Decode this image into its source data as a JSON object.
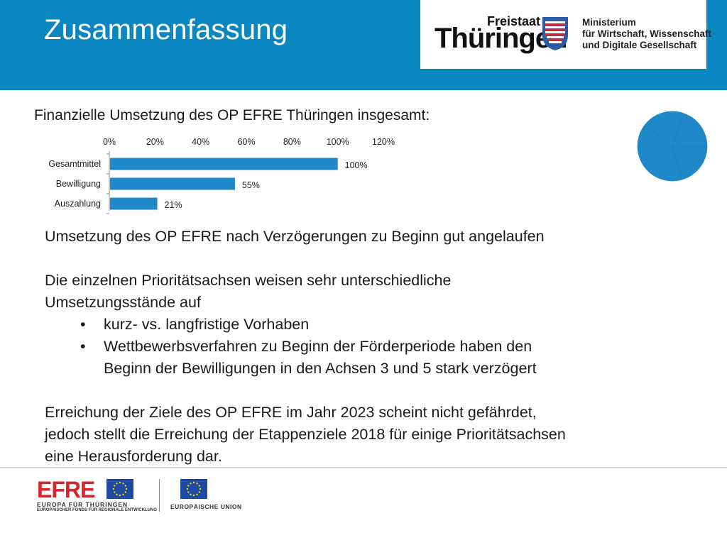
{
  "header": {
    "title": "Zusammenfassung",
    "logo": {
      "freistaat": "Freistaat",
      "thueringen": "Thüringen",
      "ministry_lines": [
        "Ministerium",
        "für Wirtschaft, Wissenschaft",
        "und Digitale Gesellschaft"
      ]
    }
  },
  "colors": {
    "brand_blue": "#0a86c0",
    "bar_blue": "#1e88c8",
    "efre_red": "#d6262b",
    "eu_blue": "#1e4aa3"
  },
  "subtitle": "Finanzielle Umsetzung des OP EFRE Thüringen insgesamt:",
  "chart_data": {
    "type": "bar",
    "orientation": "horizontal",
    "categories": [
      "Gesamtmittel",
      "Bewilligung",
      "Auszahlung"
    ],
    "values": [
      100,
      55,
      21
    ],
    "value_labels": [
      "100%",
      "55%",
      "21%"
    ],
    "xlim": [
      0,
      120
    ],
    "x_ticks": [
      0,
      20,
      40,
      60,
      80,
      100,
      120
    ],
    "x_tick_labels": [
      "0%",
      "20%",
      "40%",
      "60%",
      "80%",
      "100%",
      "120%"
    ],
    "axis_position": "top",
    "grid": false,
    "legend": "none"
  },
  "pie": {
    "icon": "pie-chart-icon",
    "slices": [
      0.2,
      0.2,
      0.2,
      0.2,
      0.2
    ]
  },
  "body": {
    "p1": "Umsetzung des OP EFRE nach Verzögerungen zu Beginn gut angelaufen",
    "p2_line1": "Die einzelnen Prioritätsachsen weisen sehr unterschiedliche",
    "p2_line2": "Umsetzungsstände auf",
    "bullet_char": "•",
    "bullets": [
      {
        "lines": [
          "kurz- vs. langfristige Vorhaben"
        ]
      },
      {
        "lines": [
          "Wettbewerbsverfahren zu Beginn der Förderperiode haben den",
          "Beginn der Bewilligungen in den Achsen 3 und 5 stark verzögert"
        ]
      }
    ],
    "p3_lines": [
      "Erreichung der Ziele des OP EFRE im Jahr 2023 scheint nicht gefährdet,",
      "jedoch stellt die Erreichung der Etappenziele 2018 für einige Prioritätsachsen",
      "eine Herausforderung dar."
    ]
  },
  "footer": {
    "efre_word": "EFRE",
    "efre_line1": "EUROPA FÜR THÜRINGEN",
    "efre_line2": "EUROPÄISCHER FONDS FÜR REGIONALE ENTWICKLUNG",
    "eu_text": "EUROPÄISCHE UNION"
  }
}
